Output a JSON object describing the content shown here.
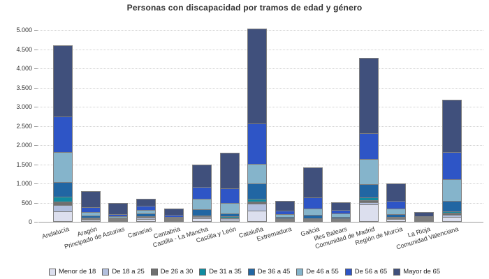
{
  "chart_data": {
    "type": "bar",
    "stacked": true,
    "title": "Personas con discapacidad por tramos de edad y género",
    "categories": [
      "Andalucía",
      "Aragón",
      "Principado de Asturias",
      "Canarias",
      "Cantabria",
      "Castilla - La Mancha",
      "Castilla y León",
      "Cataluña",
      "Extremadura",
      "Galicia",
      "Illes Balears",
      "Comunidad de Madrid",
      "Región de Murcia",
      "La Rioja",
      "Comunidad Valenciana"
    ],
    "series": [
      {
        "name": "Menor de 18",
        "color": "#dcdfee",
        "values": [
          280,
          50,
          15,
          65,
          10,
          85,
          60,
          285,
          25,
          35,
          25,
          450,
          65,
          15,
          125
        ]
      },
      {
        "name": "De 18 a 25",
        "color": "#b3c0de",
        "values": [
          180,
          45,
          20,
          55,
          15,
          60,
          45,
          200,
          20,
          30,
          25,
          85,
          35,
          12,
          80
        ]
      },
      {
        "name": "De 26 a 30",
        "color": "#6f6f6f",
        "values": [
          110,
          20,
          15,
          35,
          20,
          35,
          30,
          75,
          15,
          30,
          15,
          70,
          30,
          8,
          60
        ]
      },
      {
        "name": "De 31 a 35",
        "color": "#108ba0",
        "values": [
          145,
          25,
          15,
          35,
          20,
          45,
          45,
          90,
          15,
          35,
          15,
          85,
          30,
          10,
          70
        ]
      },
      {
        "name": "De 36 a 45",
        "color": "#2166a3",
        "values": [
          395,
          80,
          45,
          75,
          45,
          180,
          100,
          420,
          60,
          110,
          55,
          360,
          90,
          25,
          285
        ]
      },
      {
        "name": "De 46 a 55",
        "color": "#85b4cb",
        "values": [
          790,
          100,
          55,
          115,
          40,
          285,
          280,
          535,
          85,
          180,
          110,
          685,
          165,
          35,
          575
        ]
      },
      {
        "name": "De 56 a 65",
        "color": "#2e55c6",
        "values": [
          960,
          150,
          80,
          135,
          75,
          335,
          405,
          1060,
          115,
          305,
          105,
          680,
          215,
          35,
          735
        ]
      },
      {
        "name": "Mayor de 65",
        "color": "#40507c",
        "values": [
          1865,
          430,
          300,
          200,
          170,
          590,
          940,
          2490,
          260,
          800,
          220,
          1980,
          475,
          135,
          1385
        ]
      }
    ],
    "ylim": [
      0,
      5000
    ],
    "ytick_interval": 500,
    "ytick_labels": [
      "0",
      "500",
      "1.000",
      "1.500",
      "2.000",
      "2.500",
      "3.000",
      "3.500",
      "4.000",
      "4.500",
      "5.000"
    ],
    "xlabel": "",
    "ylabel": "",
    "grid": "horizontal-dotted",
    "legend_position": "bottom",
    "bar_border_color": "#7f7f7f",
    "axis_line_color": "#9a9a9a",
    "title_color": "#333333",
    "tick_label_color": "#333333",
    "background": "#ffffff"
  }
}
